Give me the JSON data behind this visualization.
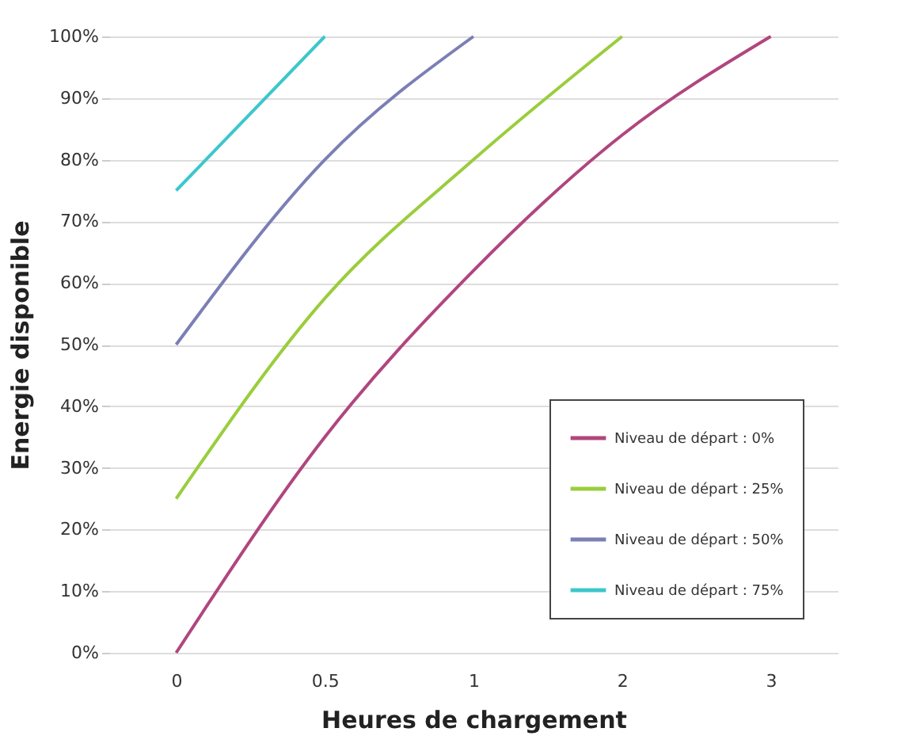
{
  "chart_data": {
    "type": "line",
    "xlabel": "Heures de chargement",
    "ylabel": "Energie disponible",
    "categories": [
      "0",
      "0.5",
      "1",
      "2",
      "3"
    ],
    "series": [
      {
        "name": "Niveau de départ : 0%",
        "color": "#b0467e",
        "values": [
          0,
          35,
          62,
          84,
          100
        ]
      },
      {
        "name": "Niveau de départ : 25%",
        "color": "#9acd3c",
        "values": [
          25,
          57.5,
          80,
          100,
          null
        ]
      },
      {
        "name": "Niveau de départ : 50%",
        "color": "#7b7fb5",
        "values": [
          50,
          80,
          100,
          null,
          null
        ]
      },
      {
        "name": "Niveau de départ : 75%",
        "color": "#3cc7cc",
        "values": [
          75,
          100,
          null,
          null,
          null
        ]
      }
    ],
    "ylim": [
      0,
      100
    ],
    "yticks": [
      {
        "value": 0,
        "label": "0%"
      },
      {
        "value": 10,
        "label": "10%"
      },
      {
        "value": 20,
        "label": "20%"
      },
      {
        "value": 30,
        "label": "30%"
      },
      {
        "value": 40,
        "label": "40%"
      },
      {
        "value": 50,
        "label": "50%"
      },
      {
        "value": 60,
        "label": "60%"
      },
      {
        "value": 70,
        "label": "70%"
      },
      {
        "value": 80,
        "label": "80%"
      },
      {
        "value": 90,
        "label": "90%"
      },
      {
        "value": 100,
        "label": "100%"
      }
    ],
    "grid": "y",
    "legend": "bottom right",
    "marker": "none",
    "line_style": "solid"
  }
}
